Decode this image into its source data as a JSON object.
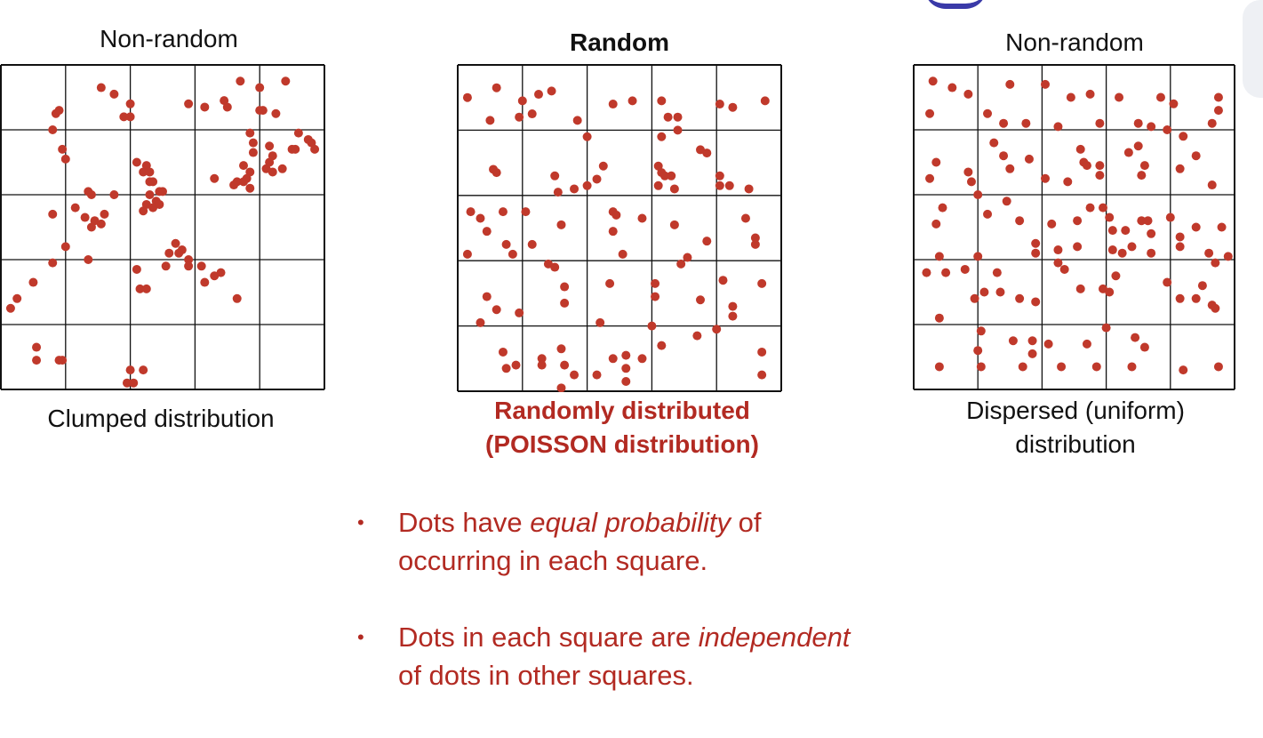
{
  "panels": [
    {
      "title": "Non-random",
      "caption_line1": "Clumped distribution",
      "caption_line2": "",
      "dots": [
        [
          0.03,
          0.75
        ],
        [
          0.05,
          0.72
        ],
        [
          0.1,
          0.67
        ],
        [
          0.16,
          0.61
        ],
        [
          0.27,
          0.6
        ],
        [
          0.11,
          0.87
        ],
        [
          0.11,
          0.91
        ],
        [
          0.18,
          0.91
        ],
        [
          0.19,
          0.91
        ],
        [
          0.4,
          0.94
        ],
        [
          0.44,
          0.94
        ],
        [
          0.39,
          0.98
        ],
        [
          0.41,
          0.98
        ],
        [
          0.31,
          0.07
        ],
        [
          0.35,
          0.09
        ],
        [
          0.38,
          0.16
        ],
        [
          0.4,
          0.16
        ],
        [
          0.4,
          0.12
        ],
        [
          0.17,
          0.15
        ],
        [
          0.18,
          0.14
        ],
        [
          0.16,
          0.2
        ],
        [
          0.19,
          0.26
        ],
        [
          0.2,
          0.29
        ],
        [
          0.27,
          0.39
        ],
        [
          0.28,
          0.4
        ],
        [
          0.35,
          0.4
        ],
        [
          0.23,
          0.44
        ],
        [
          0.26,
          0.47
        ],
        [
          0.29,
          0.48
        ],
        [
          0.32,
          0.46
        ],
        [
          0.28,
          0.5
        ],
        [
          0.31,
          0.49
        ],
        [
          0.16,
          0.46
        ],
        [
          0.2,
          0.56
        ],
        [
          0.42,
          0.3
        ],
        [
          0.45,
          0.31
        ],
        [
          0.44,
          0.33
        ],
        [
          0.46,
          0.33
        ],
        [
          0.46,
          0.36
        ],
        [
          0.47,
          0.36
        ],
        [
          0.49,
          0.39
        ],
        [
          0.5,
          0.39
        ],
        [
          0.48,
          0.42
        ],
        [
          0.46,
          0.4
        ],
        [
          0.45,
          0.43
        ],
        [
          0.44,
          0.45
        ],
        [
          0.47,
          0.44
        ],
        [
          0.49,
          0.43
        ],
        [
          0.54,
          0.55
        ],
        [
          0.52,
          0.58
        ],
        [
          0.56,
          0.57
        ],
        [
          0.58,
          0.6
        ],
        [
          0.55,
          0.58
        ],
        [
          0.58,
          0.62
        ],
        [
          0.51,
          0.62
        ],
        [
          0.62,
          0.62
        ],
        [
          0.42,
          0.63
        ],
        [
          0.43,
          0.69
        ],
        [
          0.45,
          0.69
        ],
        [
          0.63,
          0.67
        ],
        [
          0.66,
          0.65
        ],
        [
          0.68,
          0.64
        ],
        [
          0.73,
          0.72
        ],
        [
          0.58,
          0.12
        ],
        [
          0.63,
          0.13
        ],
        [
          0.69,
          0.11
        ],
        [
          0.7,
          0.13
        ],
        [
          0.74,
          0.05
        ],
        [
          0.8,
          0.07
        ],
        [
          0.88,
          0.05
        ],
        [
          0.8,
          0.14
        ],
        [
          0.81,
          0.14
        ],
        [
          0.85,
          0.15
        ],
        [
          0.77,
          0.21
        ],
        [
          0.78,
          0.24
        ],
        [
          0.78,
          0.27
        ],
        [
          0.83,
          0.25
        ],
        [
          0.84,
          0.28
        ],
        [
          0.9,
          0.26
        ],
        [
          0.92,
          0.21
        ],
        [
          0.95,
          0.23
        ],
        [
          0.96,
          0.24
        ],
        [
          0.97,
          0.26
        ],
        [
          0.75,
          0.31
        ],
        [
          0.77,
          0.33
        ],
        [
          0.82,
          0.32
        ],
        [
          0.84,
          0.33
        ],
        [
          0.87,
          0.32
        ],
        [
          0.73,
          0.36
        ],
        [
          0.72,
          0.37
        ],
        [
          0.75,
          0.36
        ],
        [
          0.76,
          0.35
        ],
        [
          0.77,
          0.38
        ],
        [
          0.66,
          0.35
        ],
        [
          0.91,
          0.26
        ],
        [
          0.83,
          0.3
        ]
      ]
    },
    {
      "title": "Random",
      "caption_line1": "Randomly distributed",
      "caption_line2": "(POISSON distribution)",
      "dots": [
        [
          0.03,
          0.1
        ],
        [
          0.12,
          0.07
        ],
        [
          0.2,
          0.11
        ],
        [
          0.25,
          0.09
        ],
        [
          0.29,
          0.08
        ],
        [
          0.1,
          0.17
        ],
        [
          0.19,
          0.16
        ],
        [
          0.23,
          0.15
        ],
        [
          0.37,
          0.17
        ],
        [
          0.48,
          0.12
        ],
        [
          0.54,
          0.11
        ],
        [
          0.63,
          0.11
        ],
        [
          0.65,
          0.16
        ],
        [
          0.68,
          0.16
        ],
        [
          0.68,
          0.2
        ],
        [
          0.81,
          0.12
        ],
        [
          0.85,
          0.13
        ],
        [
          0.95,
          0.11
        ],
        [
          0.4,
          0.22
        ],
        [
          0.63,
          0.22
        ],
        [
          0.75,
          0.26
        ],
        [
          0.77,
          0.27
        ],
        [
          0.11,
          0.32
        ],
        [
          0.12,
          0.33
        ],
        [
          0.3,
          0.34
        ],
        [
          0.36,
          0.38
        ],
        [
          0.4,
          0.37
        ],
        [
          0.43,
          0.35
        ],
        [
          0.45,
          0.31
        ],
        [
          0.31,
          0.39
        ],
        [
          0.62,
          0.31
        ],
        [
          0.63,
          0.33
        ],
        [
          0.64,
          0.34
        ],
        [
          0.66,
          0.34
        ],
        [
          0.62,
          0.37
        ],
        [
          0.67,
          0.38
        ],
        [
          0.81,
          0.34
        ],
        [
          0.81,
          0.37
        ],
        [
          0.84,
          0.37
        ],
        [
          0.9,
          0.38
        ],
        [
          0.04,
          0.45
        ],
        [
          0.07,
          0.47
        ],
        [
          0.14,
          0.45
        ],
        [
          0.21,
          0.45
        ],
        [
          0.09,
          0.51
        ],
        [
          0.15,
          0.55
        ],
        [
          0.23,
          0.55
        ],
        [
          0.32,
          0.49
        ],
        [
          0.48,
          0.45
        ],
        [
          0.49,
          0.46
        ],
        [
          0.48,
          0.51
        ],
        [
          0.57,
          0.47
        ],
        [
          0.67,
          0.49
        ],
        [
          0.89,
          0.47
        ],
        [
          0.92,
          0.55
        ],
        [
          0.92,
          0.53
        ],
        [
          0.77,
          0.54
        ],
        [
          0.17,
          0.58
        ],
        [
          0.03,
          0.58
        ],
        [
          0.28,
          0.61
        ],
        [
          0.3,
          0.62
        ],
        [
          0.51,
          0.58
        ],
        [
          0.69,
          0.61
        ],
        [
          0.71,
          0.59
        ],
        [
          0.47,
          0.67
        ],
        [
          0.61,
          0.67
        ],
        [
          0.82,
          0.66
        ],
        [
          0.94,
          0.67
        ],
        [
          0.09,
          0.71
        ],
        [
          0.12,
          0.75
        ],
        [
          0.33,
          0.68
        ],
        [
          0.33,
          0.73
        ],
        [
          0.61,
          0.71
        ],
        [
          0.75,
          0.72
        ],
        [
          0.85,
          0.74
        ],
        [
          0.85,
          0.77
        ],
        [
          0.07,
          0.79
        ],
        [
          0.19,
          0.76
        ],
        [
          0.44,
          0.79
        ],
        [
          0.6,
          0.8
        ],
        [
          0.74,
          0.83
        ],
        [
          0.8,
          0.81
        ],
        [
          0.14,
          0.88
        ],
        [
          0.15,
          0.93
        ],
        [
          0.18,
          0.92
        ],
        [
          0.26,
          0.9
        ],
        [
          0.26,
          0.92
        ],
        [
          0.32,
          0.87
        ],
        [
          0.33,
          0.92
        ],
        [
          0.36,
          0.95
        ],
        [
          0.43,
          0.95
        ],
        [
          0.48,
          0.9
        ],
        [
          0.52,
          0.89
        ],
        [
          0.52,
          0.93
        ],
        [
          0.57,
          0.9
        ],
        [
          0.52,
          0.97
        ],
        [
          0.32,
          0.99
        ],
        [
          0.94,
          0.88
        ],
        [
          0.94,
          0.95
        ],
        [
          0.63,
          0.86
        ]
      ]
    },
    {
      "title": "Non-random",
      "caption_line1": "Dispersed (uniform)",
      "caption_line2": "distribution",
      "dots": [
        [
          0.06,
          0.05
        ],
        [
          0.12,
          0.07
        ],
        [
          0.17,
          0.09
        ],
        [
          0.3,
          0.06
        ],
        [
          0.41,
          0.06
        ],
        [
          0.49,
          0.1
        ],
        [
          0.55,
          0.09
        ],
        [
          0.64,
          0.1
        ],
        [
          0.77,
          0.1
        ],
        [
          0.81,
          0.12
        ],
        [
          0.95,
          0.1
        ],
        [
          0.05,
          0.15
        ],
        [
          0.23,
          0.15
        ],
        [
          0.28,
          0.18
        ],
        [
          0.35,
          0.18
        ],
        [
          0.45,
          0.19
        ],
        [
          0.58,
          0.18
        ],
        [
          0.7,
          0.18
        ],
        [
          0.74,
          0.19
        ],
        [
          0.79,
          0.2
        ],
        [
          0.84,
          0.22
        ],
        [
          0.95,
          0.14
        ],
        [
          0.93,
          0.18
        ],
        [
          0.07,
          0.3
        ],
        [
          0.05,
          0.35
        ],
        [
          0.25,
          0.24
        ],
        [
          0.28,
          0.28
        ],
        [
          0.3,
          0.32
        ],
        [
          0.36,
          0.29
        ],
        [
          0.41,
          0.35
        ],
        [
          0.48,
          0.36
        ],
        [
          0.52,
          0.26
        ],
        [
          0.53,
          0.3
        ],
        [
          0.54,
          0.31
        ],
        [
          0.58,
          0.31
        ],
        [
          0.58,
          0.34
        ],
        [
          0.67,
          0.27
        ],
        [
          0.7,
          0.25
        ],
        [
          0.72,
          0.31
        ],
        [
          0.71,
          0.34
        ],
        [
          0.83,
          0.32
        ],
        [
          0.88,
          0.28
        ],
        [
          0.93,
          0.37
        ],
        [
          0.18,
          0.36
        ],
        [
          0.17,
          0.33
        ],
        [
          0.2,
          0.4
        ],
        [
          0.09,
          0.44
        ],
        [
          0.07,
          0.49
        ],
        [
          0.23,
          0.46
        ],
        [
          0.29,
          0.42
        ],
        [
          0.33,
          0.48
        ],
        [
          0.38,
          0.55
        ],
        [
          0.43,
          0.49
        ],
        [
          0.51,
          0.48
        ],
        [
          0.55,
          0.44
        ],
        [
          0.59,
          0.44
        ],
        [
          0.61,
          0.47
        ],
        [
          0.62,
          0.51
        ],
        [
          0.66,
          0.51
        ],
        [
          0.71,
          0.48
        ],
        [
          0.73,
          0.48
        ],
        [
          0.74,
          0.52
        ],
        [
          0.8,
          0.47
        ],
        [
          0.83,
          0.53
        ],
        [
          0.88,
          0.5
        ],
        [
          0.96,
          0.5
        ],
        [
          0.08,
          0.59
        ],
        [
          0.2,
          0.59
        ],
        [
          0.16,
          0.63
        ],
        [
          0.38,
          0.58
        ],
        [
          0.45,
          0.57
        ],
        [
          0.45,
          0.61
        ],
        [
          0.51,
          0.56
        ],
        [
          0.62,
          0.57
        ],
        [
          0.65,
          0.58
        ],
        [
          0.68,
          0.56
        ],
        [
          0.74,
          0.58
        ],
        [
          0.83,
          0.56
        ],
        [
          0.92,
          0.58
        ],
        [
          0.94,
          0.61
        ],
        [
          0.98,
          0.59
        ],
        [
          0.04,
          0.64
        ],
        [
          0.1,
          0.64
        ],
        [
          0.19,
          0.72
        ],
        [
          0.22,
          0.7
        ],
        [
          0.26,
          0.64
        ],
        [
          0.27,
          0.7
        ],
        [
          0.33,
          0.72
        ],
        [
          0.38,
          0.73
        ],
        [
          0.47,
          0.63
        ],
        [
          0.52,
          0.69
        ],
        [
          0.59,
          0.69
        ],
        [
          0.61,
          0.7
        ],
        [
          0.63,
          0.65
        ],
        [
          0.79,
          0.67
        ],
        [
          0.83,
          0.72
        ],
        [
          0.88,
          0.72
        ],
        [
          0.9,
          0.68
        ],
        [
          0.93,
          0.74
        ],
        [
          0.94,
          0.75
        ],
        [
          0.08,
          0.78
        ],
        [
          0.21,
          0.82
        ],
        [
          0.2,
          0.88
        ],
        [
          0.31,
          0.85
        ],
        [
          0.37,
          0.85
        ],
        [
          0.37,
          0.89
        ],
        [
          0.42,
          0.86
        ],
        [
          0.54,
          0.86
        ],
        [
          0.6,
          0.81
        ],
        [
          0.69,
          0.84
        ],
        [
          0.72,
          0.87
        ],
        [
          0.08,
          0.93
        ],
        [
          0.21,
          0.93
        ],
        [
          0.34,
          0.93
        ],
        [
          0.46,
          0.93
        ],
        [
          0.57,
          0.93
        ],
        [
          0.68,
          0.93
        ],
        [
          0.84,
          0.94
        ],
        [
          0.95,
          0.93
        ]
      ]
    }
  ],
  "bullets": [
    {
      "text_before": "Dots have ",
      "text_em": "equal probability",
      "text_after": " of occurring in each square."
    },
    {
      "text_before": "Dots in each square are ",
      "text_em": "independent",
      "text_after": " of dots in other squares."
    }
  ],
  "bullet_symbol": "•",
  "colors": {
    "dot": "#c0392b",
    "caption_red": "#b22a22",
    "grid": "#111111"
  }
}
